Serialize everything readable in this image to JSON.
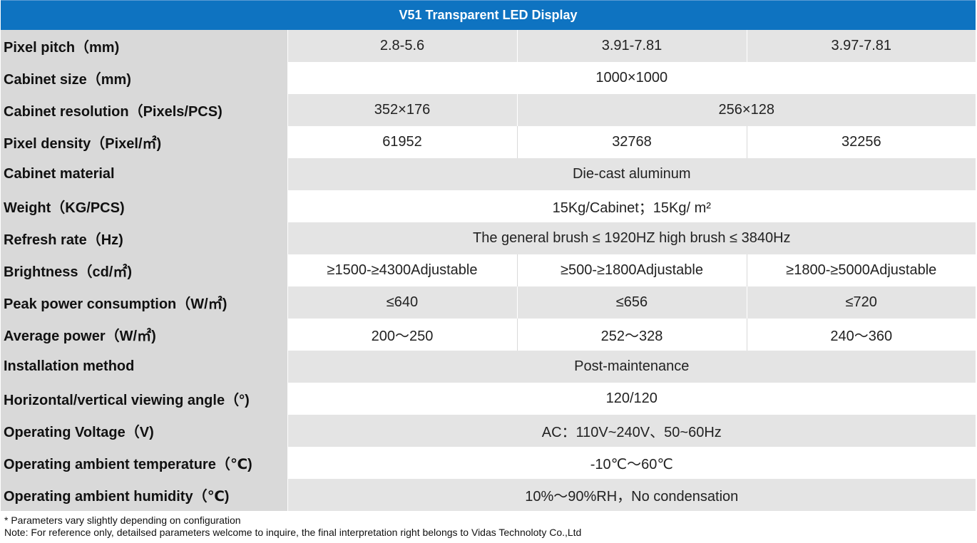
{
  "title": "V51 Transparent LED Display",
  "rows": [
    {
      "label": "Pixel pitch（mm)",
      "values": [
        "2.8-5.6",
        "3.91-7.81",
        "3.97-7.81"
      ]
    },
    {
      "label": "Cabinet size（mm)",
      "values": [
        "1000×1000"
      ]
    },
    {
      "label": "Cabinet resolution（Pixels/PCS)",
      "values": [
        "352×176",
        "256×128"
      ]
    },
    {
      "label": "Pixel density（Pixel/㎡)",
      "values": [
        "61952",
        "32768",
        "32256"
      ]
    },
    {
      "label": "Cabinet material",
      "values": [
        "Die-cast aluminum"
      ]
    },
    {
      "label": "Weight（KG/PCS)",
      "values": [
        "15Kg/Cabinet；15Kg/ m²"
      ]
    },
    {
      "label": "Refresh rate（Hz)",
      "values": [
        "The general brush ≤ 1920HZ high brush ≤ 3840Hz"
      ]
    },
    {
      "label": "Brightness（cd/㎡)",
      "values": [
        "≥1500-≥4300Adjustable",
        "≥500-≥1800Adjustable",
        "≥1800-≥5000Adjustable"
      ]
    },
    {
      "label": "Peak power consumption（W/㎡)",
      "values": [
        "≤640",
        "≤656",
        "≤720"
      ]
    },
    {
      "label": "Average power（W/㎡)",
      "values": [
        "200～250",
        "252～328",
        "240～360"
      ]
    },
    {
      "label": "Installation method",
      "values": [
        "Post-maintenance"
      ]
    },
    {
      "label": "Horizontal/vertical viewing angle（°)",
      "values": [
        "120/120"
      ]
    },
    {
      "label": "Operating Voltage（V)",
      "values": [
        "AC：110V~240V、50~60Hz"
      ]
    },
    {
      "label": "Operating ambient temperature（℃)",
      "values": [
        "-10℃～60℃"
      ]
    },
    {
      "label": "Operating ambient humidity（℃)",
      "values": [
        "10%～90%RH，No condensation"
      ]
    }
  ],
  "notes": {
    "line1": "* Parameters vary slightly depending on configuration",
    "line2": "Note: For reference only, detailsed parameters welcome to inquire, the final interpretation right belongs to Vidas Technoloty Co.,Ltd"
  },
  "colors": {
    "header_bg": "#0e73c1",
    "row_gray": "#d9d9d9"
  }
}
